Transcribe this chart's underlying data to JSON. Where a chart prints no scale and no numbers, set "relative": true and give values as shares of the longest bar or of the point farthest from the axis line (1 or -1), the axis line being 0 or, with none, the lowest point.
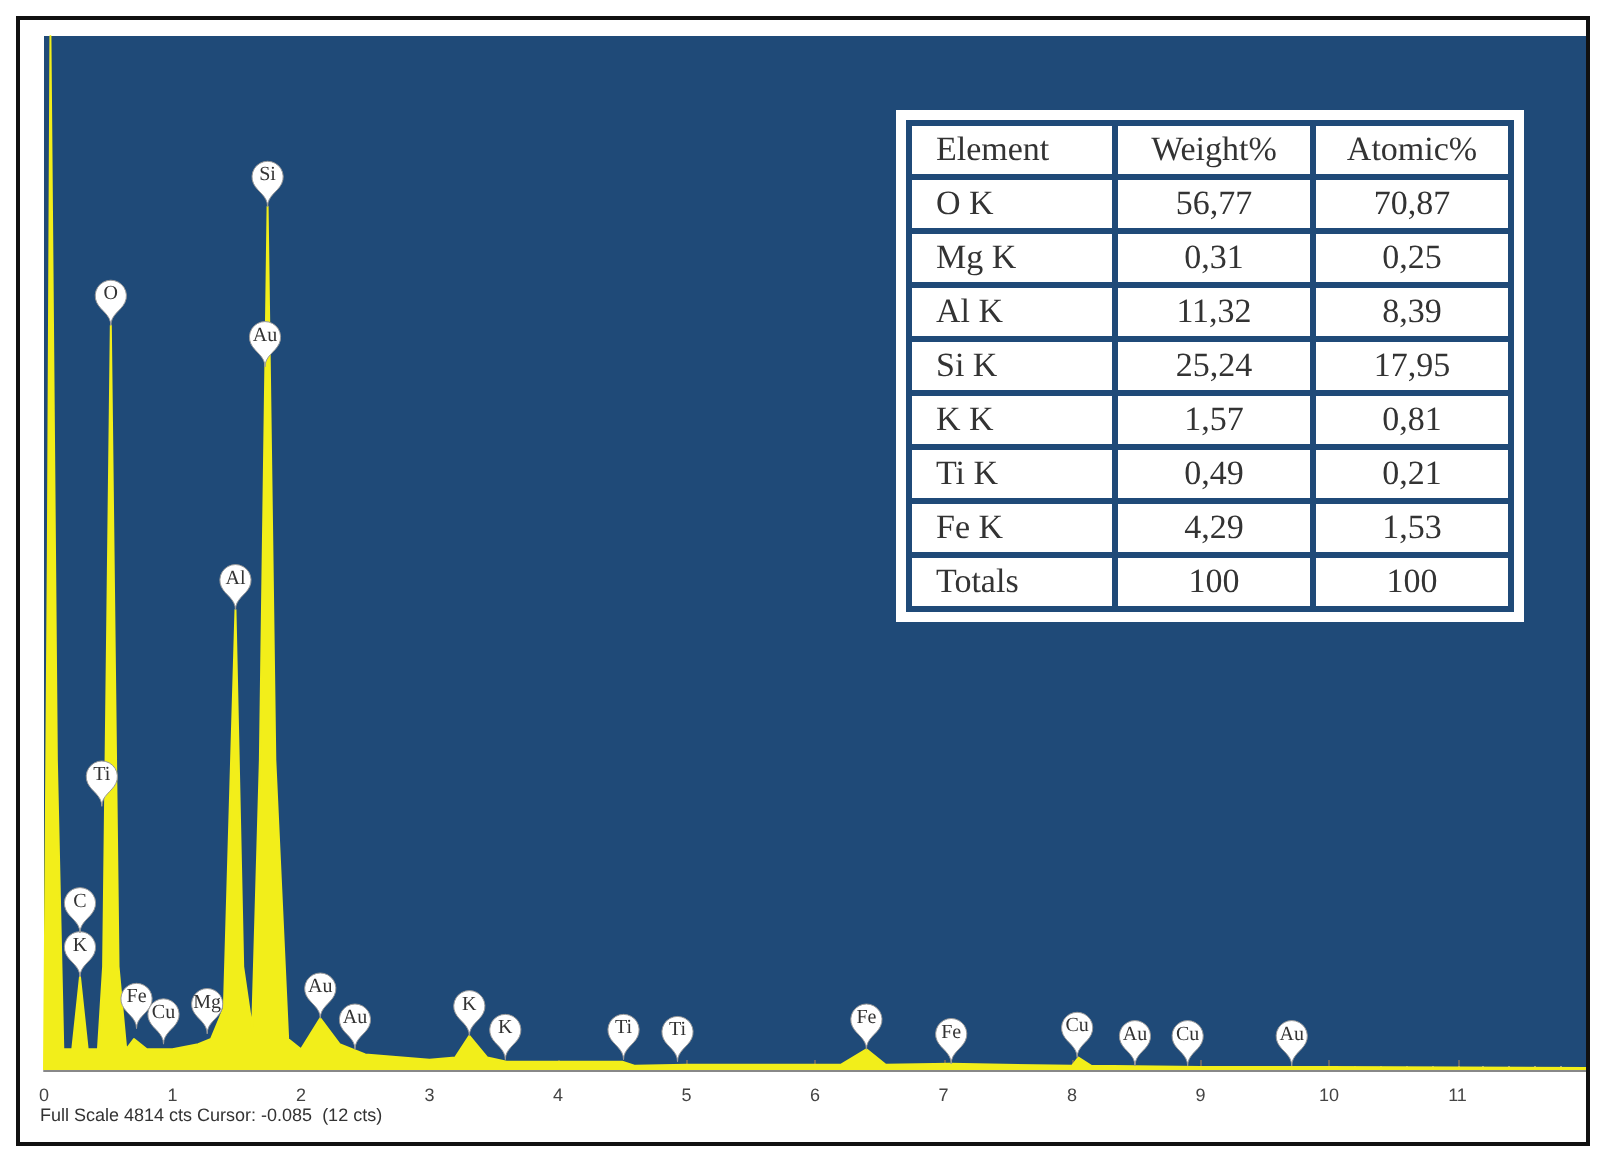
{
  "chart_data": [
    {
      "type": "area",
      "relative": true,
      "color": "#f2ee1a",
      "grid": false,
      "x": [
        0,
        0.03,
        0.05,
        0.1,
        0.15,
        0.22,
        0.28,
        0.34,
        0.42,
        0.46,
        0.52,
        0.58,
        0.64,
        0.7,
        0.8,
        1.0,
        1.2,
        1.3,
        1.4,
        1.49,
        1.55,
        1.62,
        1.68,
        1.74,
        1.8,
        1.9,
        2.0,
        2.15,
        2.3,
        2.5,
        3.0,
        3.2,
        3.31,
        3.45,
        3.6,
        4.5,
        4.6,
        5,
        6.2,
        6.4,
        6.55,
        7.05,
        8.0,
        8.05,
        8.15,
        9,
        10,
        12
      ],
      "values": [
        0,
        0.5,
        1,
        0.3,
        0.02,
        0.02,
        0.09,
        0.02,
        0.02,
        0.1,
        0.72,
        0.1,
        0.02,
        0.03,
        0.02,
        0.02,
        0.025,
        0.03,
        0.06,
        0.445,
        0.1,
        0.04,
        0.3,
        0.835,
        0.3,
        0.03,
        0.02,
        0.05,
        0.025,
        0.015,
        0.01,
        0.012,
        0.033,
        0.012,
        0.008,
        0.008,
        0.004,
        0.005,
        0.005,
        0.02,
        0.005,
        0.006,
        0.004,
        0.012,
        0.004,
        0.003,
        0.003,
        0.002
      ],
      "xlim": [
        0,
        12
      ],
      "xticks": [
        0,
        1,
        2,
        3,
        4,
        5,
        6,
        7,
        8,
        9,
        10,
        11
      ],
      "annotations": [
        "Full Scale 4814 cts Cursor: -0.085  (12 cts)",
        {
          "text": "O",
          "x": 0.52,
          "y": 0.72
        },
        {
          "text": "Si",
          "x": 1.74,
          "y": 0.835
        },
        {
          "text": "Au",
          "x": 1.72,
          "y": 0.68
        },
        {
          "text": "Al",
          "x": 1.49,
          "y": 0.445
        },
        {
          "text": "Ti",
          "x": 0.45,
          "y": 0.255
        },
        {
          "text": "K",
          "x": 0.28,
          "y": 0.09
        },
        "C",
        {
          "text": "Fe",
          "x": 0.72,
          "y": 0.04
        },
        {
          "text": "Cu",
          "x": 0.93,
          "y": 0.025
        },
        {
          "text": "Mg",
          "x": 1.27,
          "y": 0.035
        },
        {
          "text": "Au",
          "x": 2.15,
          "y": 0.05
        },
        {
          "text": "Au",
          "x": 2.42,
          "y": 0.02
        },
        {
          "text": "K",
          "x": 3.31,
          "y": 0.033
        },
        {
          "text": "K",
          "x": 3.59,
          "y": 0.01
        },
        {
          "text": "Ti",
          "x": 4.51,
          "y": 0.01
        },
        {
          "text": "Ti",
          "x": 4.93,
          "y": 0.008
        },
        {
          "text": "Fe",
          "x": 6.4,
          "y": 0.02
        },
        {
          "text": "Fe",
          "x": 7.06,
          "y": 0.006
        },
        {
          "text": "Cu",
          "x": 8.04,
          "y": 0.012
        },
        {
          "text": "Au",
          "x": 8.49,
          "y": 0.004
        },
        {
          "text": "Cu",
          "x": 8.9,
          "y": 0.004
        },
        {
          "text": "Au",
          "x": 9.71,
          "y": 0.004
        }
      ]
    },
    {
      "type": "other",
      "legend_title": "Element",
      "categories": [
        "O K",
        "Mg K",
        "Al K",
        "Si K",
        "K K",
        "Ti K",
        "Fe K",
        "Totals"
      ],
      "series": [
        {
          "name": "Weight%",
          "values": [
            56.77,
            0.31,
            11.32,
            25.24,
            1.57,
            0.49,
            4.29,
            100
          ],
          "value_labels": [
            "56,77",
            "0,31",
            "11,32",
            "25,24",
            "1,57",
            "0,49",
            "4,29",
            "100"
          ]
        },
        {
          "name": "Atomic%",
          "values": [
            70.87,
            0.25,
            8.39,
            17.95,
            0.81,
            0.21,
            1.53,
            100
          ],
          "value_labels": [
            "70,87",
            "0,25",
            "8,39",
            "17,95",
            "0,81",
            "0,21",
            "1,53",
            "100"
          ]
        }
      ]
    }
  ]
}
